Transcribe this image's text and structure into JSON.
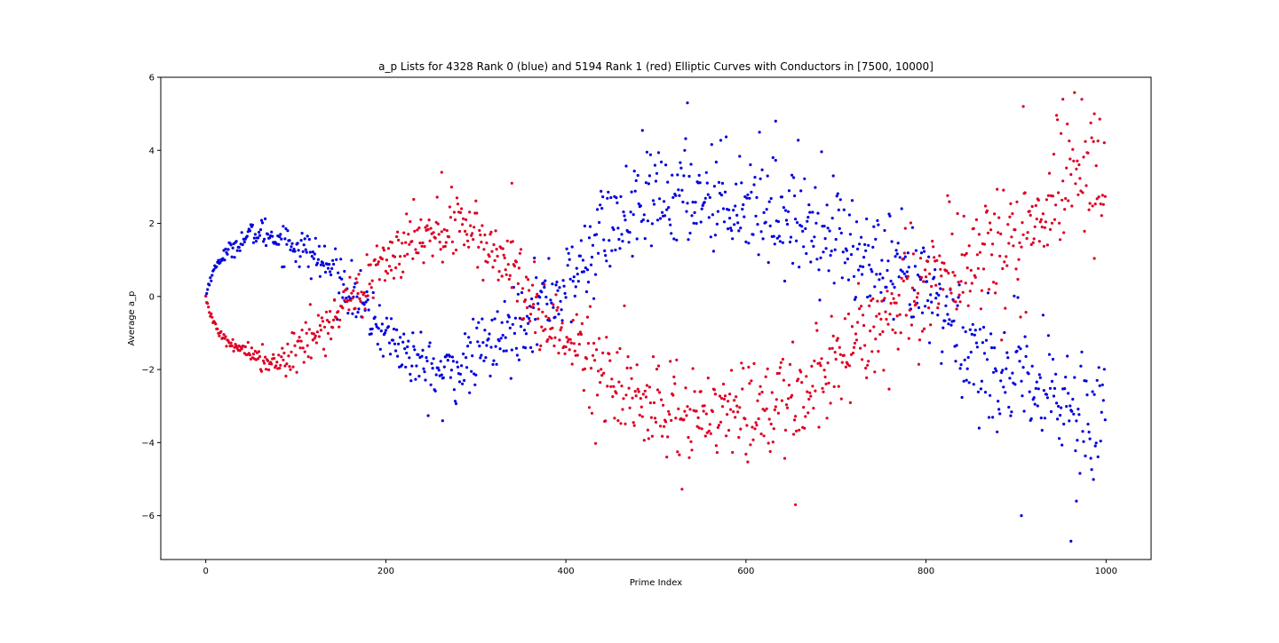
{
  "chart_data": {
    "type": "scatter",
    "title": "a_p Lists for 4328 Rank 0 (blue) and 5194 Rank 1 (red) Elliptic Curves with Conductors in [7500, 10000]",
    "xlabel": "Prime Index",
    "ylabel": "Average a_p",
    "xlim": [
      -50,
      1050
    ],
    "ylim": [
      -7.2,
      6.0
    ],
    "x_ticks": [
      0,
      200,
      400,
      600,
      800,
      1000
    ],
    "y_ticks": [
      -6,
      -4,
      -2,
      0,
      2,
      4,
      6
    ],
    "x_tick_labels": [
      "0",
      "200",
      "400",
      "600",
      "800",
      "1000"
    ],
    "y_tick_labels": [
      "−6",
      "−4",
      "−2",
      "0",
      "2",
      "4",
      "6"
    ],
    "grid": false,
    "legend": "none",
    "point_count_per_series": 1000,
    "series": [
      {
        "color": "#0000dd",
        "envelope_x": [
          0,
          5,
          15,
          30,
          50,
          65,
          80,
          100,
          120,
          140,
          160,
          180,
          200,
          220,
          240,
          260,
          280,
          300,
          320,
          340,
          360,
          380,
          400,
          420,
          440,
          460,
          480,
          500,
          520,
          540,
          560,
          580,
          600,
          620,
          640,
          660,
          680,
          700,
          720,
          740,
          760,
          780,
          800,
          820,
          840,
          860,
          880,
          900,
          920,
          940,
          960,
          980,
          1000
        ],
        "envelope_y": [
          0.0,
          0.5,
          1.0,
          1.35,
          1.7,
          1.75,
          1.6,
          1.4,
          1.1,
          0.7,
          0.2,
          -0.5,
          -1.0,
          -1.5,
          -1.9,
          -2.1,
          -2.0,
          -1.6,
          -1.3,
          -0.9,
          -0.3,
          0.0,
          0.2,
          0.9,
          1.8,
          2.0,
          2.4,
          2.6,
          2.7,
          2.8,
          2.8,
          2.7,
          2.6,
          2.5,
          2.2,
          2.1,
          2.0,
          1.8,
          1.2,
          0.9,
          0.6,
          0.4,
          0.1,
          -0.4,
          -1.2,
          -1.8,
          -2.0,
          -2.3,
          -2.6,
          -2.8,
          -3.0,
          -3.1,
          -3.0
        ],
        "spread_x": [
          0,
          100,
          200,
          300,
          400,
          500,
          600,
          700,
          800,
          900,
          1000
        ],
        "spread": [
          0.05,
          0.35,
          0.45,
          0.55,
          0.7,
          0.85,
          0.85,
          0.85,
          0.9,
          1.0,
          1.1
        ],
        "outliers": [
          [
            263,
            -3.4
          ],
          [
            535,
            5.3
          ],
          [
            633,
            4.8
          ],
          [
            906,
            -6.0
          ],
          [
            961,
            -6.7
          ],
          [
            967,
            -5.6
          ]
        ]
      },
      {
        "color": "#dd0022",
        "envelope_x": [
          0,
          5,
          15,
          30,
          50,
          65,
          80,
          100,
          120,
          140,
          160,
          180,
          200,
          220,
          240,
          260,
          280,
          300,
          320,
          340,
          360,
          380,
          400,
          420,
          440,
          460,
          480,
          500,
          520,
          540,
          560,
          580,
          600,
          620,
          640,
          660,
          680,
          700,
          720,
          740,
          760,
          780,
          800,
          820,
          840,
          860,
          880,
          900,
          920,
          940,
          960,
          980,
          1000
        ],
        "envelope_y": [
          0.0,
          -0.5,
          -1.0,
          -1.35,
          -1.6,
          -1.75,
          -1.7,
          -1.45,
          -1.1,
          -0.6,
          0.0,
          0.4,
          0.9,
          1.3,
          1.7,
          1.85,
          1.8,
          1.6,
          1.2,
          0.6,
          -0.1,
          -0.6,
          -1.1,
          -1.6,
          -2.1,
          -2.5,
          -2.8,
          -3.0,
          -3.2,
          -3.3,
          -3.35,
          -3.3,
          -3.2,
          -3.0,
          -2.8,
          -2.6,
          -2.2,
          -1.8,
          -1.2,
          -0.8,
          -0.4,
          0.0,
          0.4,
          0.7,
          0.8,
          1.0,
          1.3,
          1.8,
          2.3,
          2.7,
          3.2,
          3.5,
          3.6
        ],
        "spread_x": [
          0,
          100,
          200,
          300,
          400,
          500,
          600,
          700,
          800,
          900,
          1000
        ],
        "spread": [
          0.05,
          0.35,
          0.45,
          0.55,
          0.7,
          0.85,
          0.85,
          0.85,
          0.9,
          1.0,
          1.1
        ],
        "outliers": [
          [
            262,
            3.4
          ],
          [
            340,
            3.1
          ],
          [
            655,
            -5.7
          ],
          [
            908,
            5.2
          ],
          [
            952,
            5.4
          ],
          [
            987,
            5.0
          ]
        ]
      }
    ]
  }
}
